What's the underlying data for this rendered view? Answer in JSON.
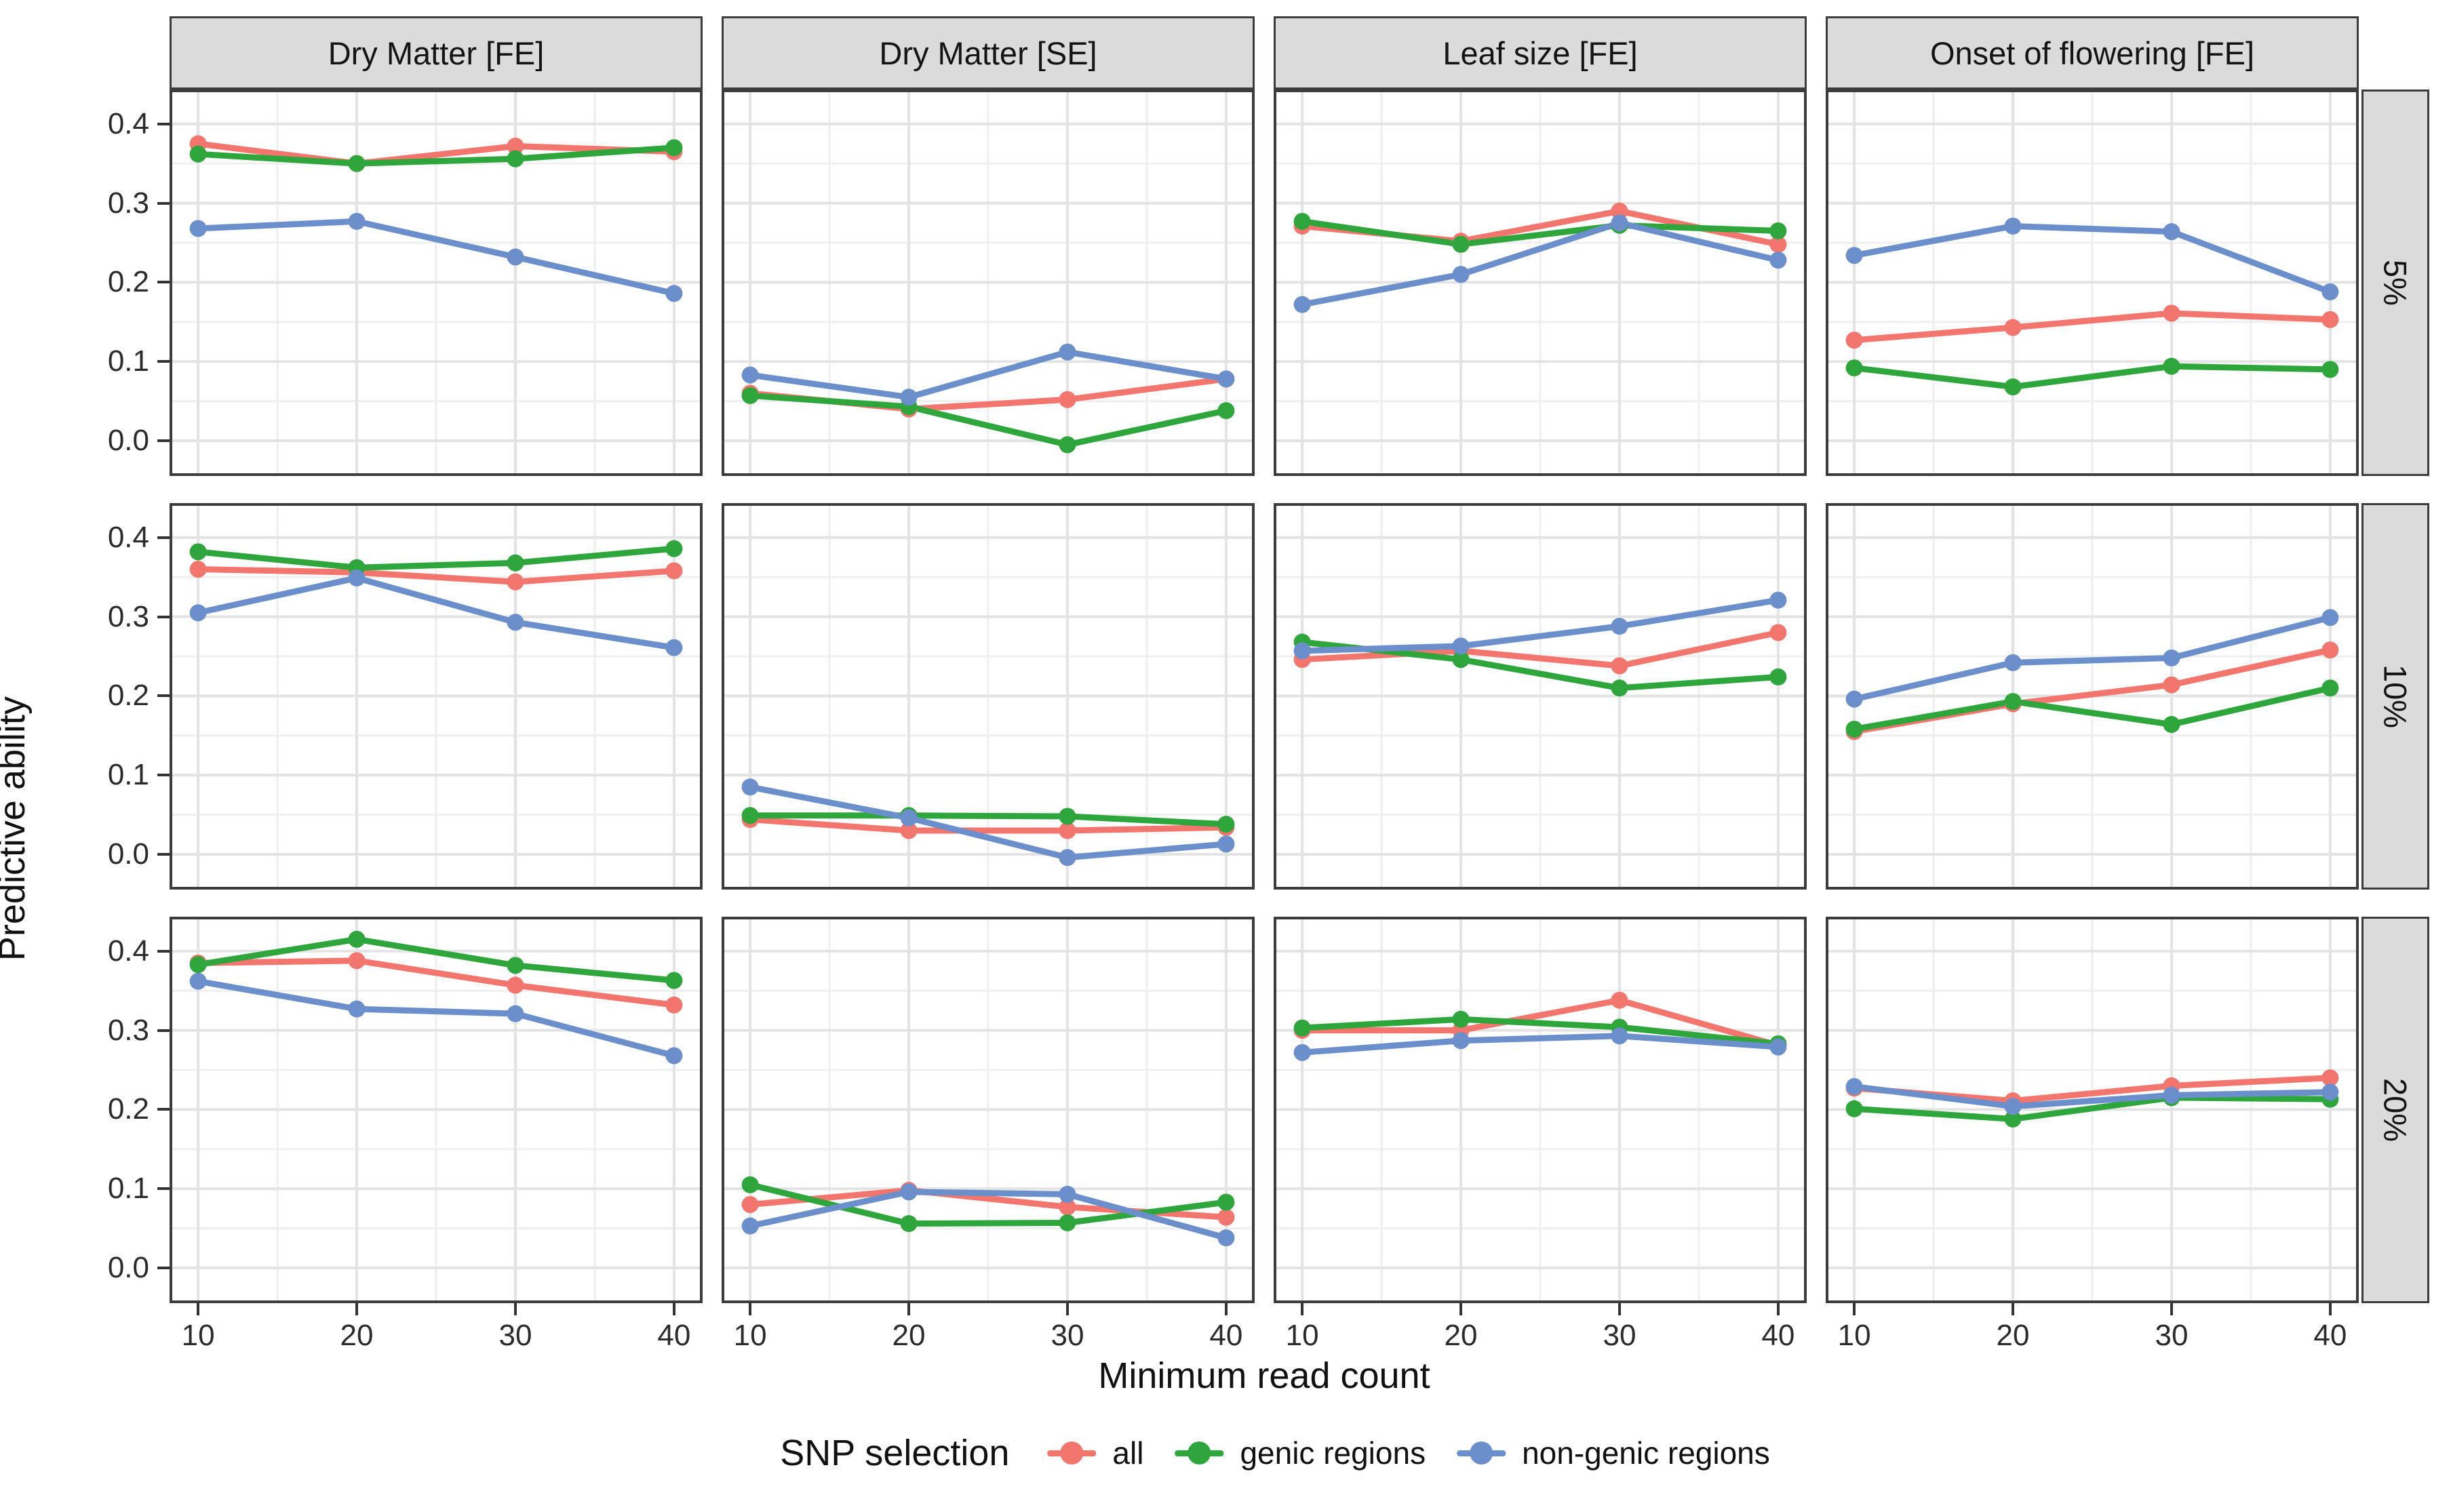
{
  "figure": {
    "y_axis_title": "Predictive ability",
    "x_axis_title": "Minimum read count"
  },
  "legend": {
    "title": "SNP selection",
    "entries": [
      {
        "label": "all",
        "color": "#F2766D"
      },
      {
        "label": "genic regions",
        "color": "#2EA63C"
      },
      {
        "label": "non-genic regions",
        "color": "#6B8FCB"
      }
    ]
  },
  "chart_data": {
    "type": "line",
    "title": "",
    "xlabel": "Minimum read count",
    "ylabel": "Predictive ability",
    "facet_cols": [
      "Dry Matter [FE]",
      "Dry Matter [SE]",
      "Leaf size [FE]",
      "Onset of flowering [FE]"
    ],
    "facet_rows": [
      "5%",
      "10%",
      "20%"
    ],
    "x": [
      10,
      20,
      30,
      40
    ],
    "x_tick_labels": [
      "10",
      "20",
      "30",
      "40"
    ],
    "y_ticks": [
      0.0,
      0.1,
      0.2,
      0.3,
      0.4
    ],
    "y_tick_labels": [
      "0.0",
      "0.1",
      "0.2",
      "0.3",
      "0.4"
    ],
    "xlim": [
      8.2,
      41.8
    ],
    "ylim": [
      -0.0445,
      0.4435
    ],
    "grid": {
      "major_color": "#e3e3e3",
      "minor_color": "#efefef",
      "minor_x": [
        15,
        25,
        35
      ],
      "minor_y": [
        0.05,
        0.15,
        0.25,
        0.35
      ]
    },
    "legend_position": "bottom",
    "series_names": [
      "all",
      "genic regions",
      "non-genic regions"
    ],
    "series_colors": {
      "all": "#F2766D",
      "genic regions": "#2EA63C",
      "non-genic regions": "#6B8FCB"
    },
    "panels": [
      {
        "row": "5%",
        "col": "Dry Matter [FE]",
        "series": [
          {
            "name": "all",
            "values": [
              0.375,
              0.35,
              0.372,
              0.365
            ]
          },
          {
            "name": "genic regions",
            "values": [
              0.362,
              0.35,
              0.356,
              0.37
            ]
          },
          {
            "name": "non-genic regions",
            "values": [
              0.268,
              0.277,
              0.232,
              0.186
            ]
          }
        ]
      },
      {
        "row": "5%",
        "col": "Dry Matter [SE]",
        "series": [
          {
            "name": "all",
            "values": [
              0.06,
              0.04,
              0.052,
              0.078
            ]
          },
          {
            "name": "genic regions",
            "values": [
              0.057,
              0.043,
              -0.005,
              0.038
            ]
          },
          {
            "name": "non-genic regions",
            "values": [
              0.083,
              0.055,
              0.112,
              0.078
            ]
          }
        ]
      },
      {
        "row": "5%",
        "col": "Leaf size [FE]",
        "series": [
          {
            "name": "all",
            "values": [
              0.271,
              0.252,
              0.29,
              0.248
            ]
          },
          {
            "name": "genic regions",
            "values": [
              0.277,
              0.248,
              0.272,
              0.265
            ]
          },
          {
            "name": "non-genic regions",
            "values": [
              0.172,
              0.21,
              0.275,
              0.228
            ]
          }
        ]
      },
      {
        "row": "5%",
        "col": "Onset of flowering [FE]",
        "series": [
          {
            "name": "all",
            "values": [
              0.127,
              0.143,
              0.161,
              0.153
            ]
          },
          {
            "name": "genic regions",
            "values": [
              0.092,
              0.068,
              0.094,
              0.09
            ]
          },
          {
            "name": "non-genic regions",
            "values": [
              0.234,
              0.271,
              0.264,
              0.188
            ]
          }
        ]
      },
      {
        "row": "10%",
        "col": "Dry Matter [FE]",
        "series": [
          {
            "name": "all",
            "values": [
              0.36,
              0.356,
              0.344,
              0.358
            ]
          },
          {
            "name": "genic regions",
            "values": [
              0.382,
              0.362,
              0.368,
              0.386
            ]
          },
          {
            "name": "non-genic regions",
            "values": [
              0.305,
              0.349,
              0.293,
              0.261
            ]
          }
        ]
      },
      {
        "row": "10%",
        "col": "Dry Matter [SE]",
        "series": [
          {
            "name": "all",
            "values": [
              0.044,
              0.03,
              0.03,
              0.034
            ]
          },
          {
            "name": "genic regions",
            "values": [
              0.049,
              0.049,
              0.048,
              0.038
            ]
          },
          {
            "name": "non-genic regions",
            "values": [
              0.085,
              0.046,
              -0.004,
              0.013
            ]
          }
        ]
      },
      {
        "row": "10%",
        "col": "Leaf size [FE]",
        "series": [
          {
            "name": "all",
            "values": [
              0.246,
              0.257,
              0.238,
              0.28
            ]
          },
          {
            "name": "genic regions",
            "values": [
              0.268,
              0.246,
              0.21,
              0.224
            ]
          },
          {
            "name": "non-genic regions",
            "values": [
              0.257,
              0.263,
              0.288,
              0.321
            ]
          }
        ]
      },
      {
        "row": "10%",
        "col": "Onset of flowering [FE]",
        "series": [
          {
            "name": "all",
            "values": [
              0.155,
              0.19,
              0.214,
              0.258
            ]
          },
          {
            "name": "genic regions",
            "values": [
              0.158,
              0.193,
              0.164,
              0.21
            ]
          },
          {
            "name": "non-genic regions",
            "values": [
              0.196,
              0.242,
              0.248,
              0.299
            ]
          }
        ]
      },
      {
        "row": "20%",
        "col": "Dry Matter [FE]",
        "series": [
          {
            "name": "all",
            "values": [
              0.385,
              0.388,
              0.357,
              0.332
            ]
          },
          {
            "name": "genic regions",
            "values": [
              0.383,
              0.415,
              0.382,
              0.363
            ]
          },
          {
            "name": "non-genic regions",
            "values": [
              0.362,
              0.327,
              0.321,
              0.268
            ]
          }
        ]
      },
      {
        "row": "20%",
        "col": "Dry Matter [SE]",
        "series": [
          {
            "name": "all",
            "values": [
              0.08,
              0.098,
              0.077,
              0.064
            ]
          },
          {
            "name": "genic regions",
            "values": [
              0.105,
              0.056,
              0.057,
              0.083
            ]
          },
          {
            "name": "non-genic regions",
            "values": [
              0.053,
              0.096,
              0.093,
              0.038
            ]
          }
        ]
      },
      {
        "row": "20%",
        "col": "Leaf size [FE]",
        "series": [
          {
            "name": "all",
            "values": [
              0.3,
              0.3,
              0.338,
              0.281
            ]
          },
          {
            "name": "genic regions",
            "values": [
              0.303,
              0.314,
              0.304,
              0.283
            ]
          },
          {
            "name": "non-genic regions",
            "values": [
              0.272,
              0.287,
              0.293,
              0.279
            ]
          }
        ]
      },
      {
        "row": "20%",
        "col": "Onset of flowering [FE]",
        "series": [
          {
            "name": "all",
            "values": [
              0.227,
              0.211,
              0.23,
              0.24
            ]
          },
          {
            "name": "genic regions",
            "values": [
              0.201,
              0.188,
              0.215,
              0.213
            ]
          },
          {
            "name": "non-genic regions",
            "values": [
              0.229,
              0.204,
              0.218,
              0.222
            ]
          }
        ]
      }
    ]
  }
}
